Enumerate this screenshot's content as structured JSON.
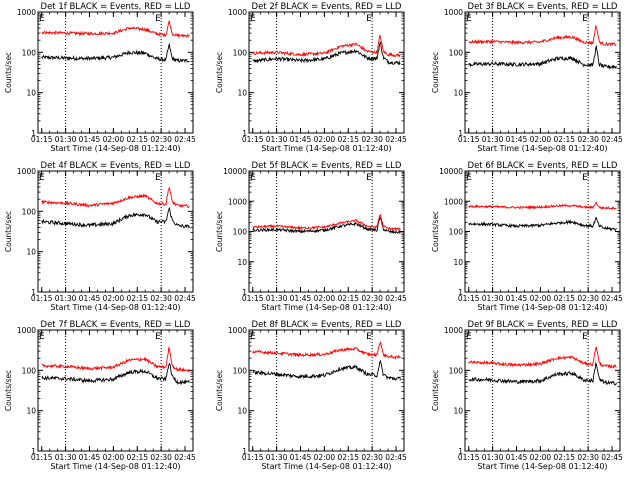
{
  "figure": {
    "x_tick_labels": [
      "01:15",
      "01:30",
      "01:45",
      "02:00",
      "02:15",
      "02:30",
      "02:45"
    ],
    "x_label": "Start Time (14-Sep-08 01:12:40)",
    "y_label": "Counts/sec",
    "dotted_line_times": [
      "01:30",
      "02:30"
    ],
    "marker_label": "E",
    "colors": {
      "events": "#000000",
      "lld": "#ff0000",
      "axes": "#000000"
    }
  },
  "chart_data": [
    {
      "type": "line",
      "title": "Det 1f BLACK = Events, RED = LLD",
      "xlabel": "Start Time (14-Sep-08 01:12:40)",
      "ylabel": "Counts/sec",
      "yscale": "log",
      "xlim": [
        "01:12:40",
        "02:50:00"
      ],
      "ylim": [
        1,
        1000
      ],
      "y_tick_labels": [
        "1000",
        "100",
        "10",
        "1"
      ],
      "x_tick_labels": [
        "01:15",
        "01:30",
        "01:45",
        "02:00",
        "02:15",
        "02:30",
        "02:45"
      ],
      "x": [
        "01:15",
        "01:30",
        "01:45",
        "02:00",
        "02:10",
        "02:20",
        "02:27",
        "02:33",
        "02:35",
        "02:37",
        "02:40",
        "02:45",
        "02:48"
      ],
      "series": [
        {
          "name": "Events",
          "color": "#000000",
          "values": [
            75,
            72,
            70,
            75,
            100,
            95,
            70,
            65,
            155,
            70,
            62,
            62,
            63
          ]
        },
        {
          "name": "LLD",
          "color": "#ff0000",
          "values": [
            310,
            300,
            290,
            300,
            400,
            370,
            290,
            270,
            600,
            290,
            260,
            260,
            262
          ]
        }
      ]
    },
    {
      "type": "line",
      "title": "Det 2f BLACK = Events, RED = LLD",
      "xlabel": "Start Time (14-Sep-08 01:12:40)",
      "ylabel": "Counts/sec",
      "yscale": "log",
      "xlim": [
        "01:12:40",
        "02:50:00"
      ],
      "ylim": [
        1,
        1000
      ],
      "y_tick_labels": [
        "1000",
        "100",
        "10",
        "1"
      ],
      "x_tick_labels": [
        "01:15",
        "01:30",
        "01:45",
        "02:00",
        "02:15",
        "02:30",
        "02:45"
      ],
      "x": [
        "01:15",
        "01:30",
        "01:45",
        "02:00",
        "02:10",
        "02:20",
        "02:27",
        "02:33",
        "02:35",
        "02:37",
        "02:40",
        "02:45",
        "02:48"
      ],
      "series": [
        {
          "name": "Events",
          "color": "#000000",
          "values": [
            60,
            70,
            62,
            68,
            95,
            110,
            72,
            70,
            180,
            75,
            58,
            55,
            55
          ]
        },
        {
          "name": "LLD",
          "color": "#ff0000",
          "values": [
            95,
            100,
            88,
            95,
            140,
            160,
            105,
            100,
            270,
            105,
            88,
            85,
            85
          ]
        }
      ]
    },
    {
      "type": "line",
      "title": "Det 3f BLACK = Events, RED = LLD",
      "xlabel": "Start Time (14-Sep-08 01:12:40)",
      "ylabel": "Counts/sec",
      "yscale": "log",
      "xlim": [
        "01:12:40",
        "02:50:00"
      ],
      "ylim": [
        1,
        1000
      ],
      "y_tick_labels": [
        "1000",
        "100",
        "10",
        "1"
      ],
      "x_tick_labels": [
        "01:15",
        "01:30",
        "01:45",
        "02:00",
        "02:15",
        "02:30",
        "02:45"
      ],
      "x": [
        "01:15",
        "01:30",
        "01:45",
        "02:00",
        "02:10",
        "02:20",
        "02:27",
        "02:33",
        "02:35",
        "02:37",
        "02:40",
        "02:45",
        "02:48"
      ],
      "series": [
        {
          "name": "Events",
          "color": "#000000",
          "values": [
            50,
            52,
            50,
            52,
            70,
            72,
            50,
            48,
            140,
            50,
            44,
            44,
            44
          ]
        },
        {
          "name": "LLD",
          "color": "#ff0000",
          "values": [
            180,
            185,
            175,
            180,
            230,
            240,
            180,
            170,
            480,
            180,
            160,
            158,
            158
          ]
        }
      ]
    },
    {
      "type": "line",
      "title": "Det 4f BLACK = Events, RED = LLD",
      "xlabel": "Start Time (14-Sep-08 01:12:40)",
      "ylabel": "Counts/sec",
      "yscale": "log",
      "xlim": [
        "01:12:40",
        "02:50:00"
      ],
      "ylim": [
        1,
        1000
      ],
      "y_tick_labels": [
        "1000",
        "100",
        "10",
        "1"
      ],
      "x_tick_labels": [
        "01:15",
        "01:30",
        "01:45",
        "02:00",
        "02:15",
        "02:30",
        "02:45"
      ],
      "x": [
        "01:15",
        "01:30",
        "01:45",
        "02:00",
        "02:10",
        "02:20",
        "02:27",
        "02:33",
        "02:35",
        "02:37",
        "02:40",
        "02:45",
        "02:48"
      ],
      "series": [
        {
          "name": "Events",
          "color": "#000000",
          "values": [
            55,
            50,
            45,
            50,
            80,
            85,
            55,
            55,
            120,
            60,
            45,
            42,
            42
          ]
        },
        {
          "name": "LLD",
          "color": "#ff0000",
          "values": [
            170,
            160,
            140,
            160,
            220,
            240,
            160,
            150,
            420,
            170,
            140,
            135,
            135
          ]
        }
      ]
    },
    {
      "type": "line",
      "title": "Det 5f BLACK = Events, RED = LLD",
      "xlabel": "Start Time (14-Sep-08 01:12:40)",
      "ylabel": "Counts/sec",
      "yscale": "log",
      "xlim": [
        "01:12:40",
        "02:50:00"
      ],
      "ylim": [
        1,
        10000
      ],
      "y_tick_labels": [
        "10000",
        "1000",
        "100",
        "10",
        "1"
      ],
      "x_tick_labels": [
        "01:15",
        "01:30",
        "01:45",
        "02:00",
        "02:15",
        "02:30",
        "02:45"
      ],
      "x": [
        "01:15",
        "01:30",
        "01:45",
        "02:00",
        "02:10",
        "02:20",
        "02:27",
        "02:33",
        "02:35",
        "02:37",
        "02:40",
        "02:45",
        "02:48"
      ],
      "series": [
        {
          "name": "Events",
          "color": "#000000",
          "values": [
            110,
            115,
            100,
            110,
            150,
            180,
            120,
            110,
            300,
            120,
            100,
            95,
            95
          ]
        },
        {
          "name": "LLD",
          "color": "#ff0000",
          "values": [
            140,
            150,
            130,
            140,
            190,
            230,
            150,
            140,
            380,
            150,
            125,
            120,
            120
          ]
        }
      ]
    },
    {
      "type": "line",
      "title": "Det 6f BLACK = Events, RED = LLD",
      "xlabel": "Start Time (14-Sep-08 01:12:40)",
      "ylabel": "Counts/sec",
      "yscale": "log",
      "xlim": [
        "01:12:40",
        "02:50:00"
      ],
      "ylim": [
        1,
        10000
      ],
      "y_tick_labels": [
        "10000",
        "1000",
        "100",
        "10",
        "1"
      ],
      "x_tick_labels": [
        "01:15",
        "01:30",
        "01:45",
        "02:00",
        "02:15",
        "02:30",
        "02:45"
      ],
      "x": [
        "01:15",
        "01:30",
        "01:45",
        "02:00",
        "02:10",
        "02:20",
        "02:27",
        "02:33",
        "02:35",
        "02:37",
        "02:40",
        "02:45",
        "02:48"
      ],
      "series": [
        {
          "name": "Events",
          "color": "#000000",
          "values": [
            180,
            170,
            150,
            160,
            190,
            210,
            160,
            150,
            280,
            150,
            130,
            120,
            120
          ]
        },
        {
          "name": "LLD",
          "color": "#ff0000",
          "values": [
            680,
            660,
            620,
            640,
            700,
            720,
            640,
            620,
            900,
            620,
            600,
            600,
            600
          ]
        }
      ]
    },
    {
      "type": "line",
      "title": "Det 7f BLACK = Events, RED = LLD",
      "xlabel": "Start Time (14-Sep-08 01:12:40)",
      "ylabel": "Counts/sec",
      "yscale": "log",
      "xlim": [
        "01:12:40",
        "02:50:00"
      ],
      "ylim": [
        1,
        1000
      ],
      "y_tick_labels": [
        "1000",
        "100",
        "10",
        "1"
      ],
      "x_tick_labels": [
        "01:15",
        "01:30",
        "01:45",
        "02:00",
        "02:15",
        "02:30",
        "02:45"
      ],
      "x": [
        "01:15",
        "01:30",
        "01:45",
        "02:00",
        "02:10",
        "02:20",
        "02:27",
        "02:33",
        "02:35",
        "02:37",
        "02:40",
        "02:45",
        "02:48"
      ],
      "series": [
        {
          "name": "Events",
          "color": "#000000",
          "values": [
            65,
            62,
            55,
            60,
            90,
            95,
            65,
            60,
            160,
            70,
            52,
            50,
            50
          ]
        },
        {
          "name": "LLD",
          "color": "#ff0000",
          "values": [
            130,
            125,
            110,
            120,
            180,
            190,
            125,
            120,
            380,
            130,
            105,
            100,
            100
          ]
        }
      ]
    },
    {
      "type": "line",
      "title": "Det 8f BLACK = Events, RED = LLD",
      "xlabel": "Start Time (14-Sep-08 01:12:40)",
      "ylabel": "Counts/sec",
      "yscale": "log",
      "xlim": [
        "01:12:40",
        "02:50:00"
      ],
      "ylim": [
        1,
        1000
      ],
      "y_tick_labels": [
        "1000",
        "100",
        "10",
        "1"
      ],
      "x_tick_labels": [
        "01:15",
        "01:30",
        "01:45",
        "02:00",
        "02:15",
        "02:30",
        "02:45"
      ],
      "x": [
        "01:15",
        "01:30",
        "01:45",
        "02:00",
        "02:10",
        "02:20",
        "02:27",
        "02:33",
        "02:35",
        "02:37",
        "02:40",
        "02:45",
        "02:48"
      ],
      "series": [
        {
          "name": "Events",
          "color": "#000000",
          "values": [
            90,
            80,
            70,
            75,
            110,
            120,
            80,
            75,
            170,
            80,
            65,
            62,
            62
          ]
        },
        {
          "name": "LLD",
          "color": "#ff0000",
          "values": [
            290,
            270,
            240,
            250,
            320,
            340,
            250,
            240,
            520,
            250,
            220,
            210,
            210
          ]
        }
      ]
    },
    {
      "type": "line",
      "title": "Det 9f BLACK = Events, RED = LLD",
      "xlabel": "Start Time (14-Sep-08 01:12:40)",
      "ylabel": "Counts/sec",
      "yscale": "log",
      "xlim": [
        "01:12:40",
        "02:50:00"
      ],
      "ylim": [
        1,
        1000
      ],
      "y_tick_labels": [
        "1000",
        "100",
        "10",
        "1"
      ],
      "x_tick_labels": [
        "01:15",
        "01:30",
        "01:45",
        "02:00",
        "02:15",
        "02:30",
        "02:45"
      ],
      "x": [
        "01:15",
        "01:30",
        "01:45",
        "02:00",
        "02:10",
        "02:20",
        "02:27",
        "02:33",
        "02:35",
        "02:37",
        "02:40",
        "02:45",
        "02:48"
      ],
      "series": [
        {
          "name": "Events",
          "color": "#000000",
          "values": [
            60,
            58,
            52,
            55,
            80,
            85,
            58,
            55,
            160,
            60,
            50,
            48,
            48
          ]
        },
        {
          "name": "LLD",
          "color": "#ff0000",
          "values": [
            160,
            150,
            135,
            145,
            200,
            210,
            150,
            140,
            420,
            150,
            128,
            125,
            125
          ]
        }
      ]
    }
  ]
}
